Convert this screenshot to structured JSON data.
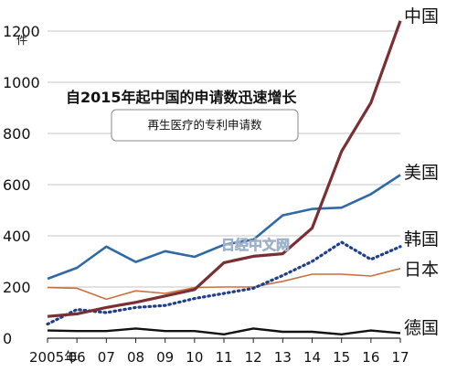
{
  "chart_data": {
    "type": "line",
    "title": "自2015年起中国的申请数迅速增长",
    "subtitle": "再生医疗的专利申请数",
    "ylabel": "件",
    "ylim": [
      0,
      1250
    ],
    "yticks": [
      0,
      200,
      400,
      600,
      800,
      1000,
      1200
    ],
    "x": [
      2005,
      2006,
      2007,
      2008,
      2009,
      2010,
      2011,
      2012,
      2013,
      2014,
      2015,
      2016,
      2017
    ],
    "xtick_labels": [
      "2005年",
      "06",
      "07",
      "08",
      "09",
      "10",
      "11",
      "12",
      "13",
      "14",
      "15",
      "16",
      "17"
    ],
    "grid": "horizontal",
    "series": [
      {
        "name": "中国",
        "color": "#7a2f33",
        "style": "solid",
        "values": [
          85,
          95,
          120,
          140,
          165,
          190,
          295,
          320,
          330,
          430,
          730,
          920,
          1240
        ]
      },
      {
        "name": "美国",
        "color": "#2f6aa6",
        "style": "solid",
        "values": [
          232,
          275,
          358,
          298,
          340,
          318,
          365,
          385,
          480,
          505,
          510,
          563,
          638
        ]
      },
      {
        "name": "韩国",
        "color": "#1f3f8a",
        "style": "dotted",
        "values": [
          55,
          112,
          100,
          120,
          128,
          155,
          175,
          195,
          245,
          300,
          375,
          308,
          358
        ]
      },
      {
        "name": "日本",
        "color": "#c8713f",
        "style": "solid",
        "values": [
          198,
          195,
          152,
          185,
          175,
          198,
          200,
          200,
          222,
          250,
          250,
          243,
          272
        ]
      },
      {
        "name": "德国",
        "color": "#111111",
        "style": "solid",
        "values": [
          30,
          28,
          28,
          38,
          28,
          28,
          15,
          38,
          25,
          25,
          15,
          30,
          20
        ]
      }
    ]
  },
  "watermark": "日经中文网"
}
